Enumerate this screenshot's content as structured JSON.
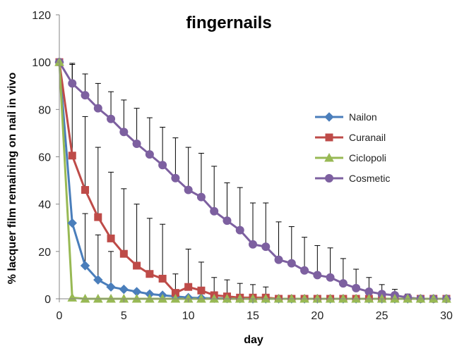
{
  "chart_data": {
    "type": "line",
    "title": "fingernails",
    "xlabel": "day",
    "ylabel": "% lacquer film remaining on nail in vivo",
    "xlim": [
      0,
      30
    ],
    "ylim": [
      0,
      120
    ],
    "xticks": [
      0,
      5,
      10,
      15,
      20,
      25,
      30
    ],
    "yticks": [
      0,
      20,
      40,
      60,
      80,
      100,
      120
    ],
    "grid": false,
    "legend_position": "right",
    "series": [
      {
        "name": "Nailon",
        "color": "#4a7ebb",
        "marker": "diamond",
        "x": [
          0,
          1,
          2,
          3,
          4,
          5,
          6,
          7,
          8,
          9,
          10,
          11,
          12,
          13,
          14,
          15,
          16,
          17,
          18,
          19,
          20,
          21,
          22,
          23,
          24,
          25,
          26,
          27,
          28,
          29,
          30
        ],
        "values": [
          100,
          32,
          14,
          8,
          5,
          4,
          3,
          2,
          1.5,
          1,
          0.5,
          0.3,
          0.2,
          0.1,
          0.1,
          0,
          0,
          0,
          0,
          0,
          0,
          0,
          0,
          0,
          0,
          0,
          0,
          0,
          0,
          0,
          0
        ],
        "error": [
          0,
          0,
          22,
          19,
          15,
          0,
          0,
          0,
          0,
          0,
          0,
          0,
          0,
          0,
          0,
          0,
          0,
          0,
          0,
          0,
          0,
          0,
          0,
          0,
          0,
          0,
          0,
          0,
          0,
          0,
          0
        ]
      },
      {
        "name": "Curanail",
        "color": "#be4b48",
        "marker": "square",
        "x": [
          0,
          1,
          2,
          3,
          4,
          5,
          6,
          7,
          8,
          9,
          10,
          11,
          12,
          13,
          14,
          15,
          16,
          17,
          18,
          19,
          20,
          21,
          22,
          23,
          24,
          25,
          26,
          27,
          28,
          29,
          30
        ],
        "values": [
          100,
          60.5,
          46,
          34.5,
          25.5,
          19,
          14,
          10.5,
          8.5,
          2.5,
          5,
          3.5,
          1.5,
          1,
          0.5,
          0.5,
          0.5,
          0,
          0,
          0,
          0,
          0,
          0,
          0,
          0,
          0,
          0,
          0,
          0,
          0,
          0
        ],
        "error": [
          0,
          38.5,
          31,
          29.5,
          28,
          27.5,
          26,
          23.5,
          23,
          8,
          16,
          12,
          7.5,
          7,
          6,
          5.5,
          4.5,
          0,
          0,
          0,
          0,
          0,
          0,
          0,
          0,
          0,
          0,
          0,
          0,
          0,
          0
        ]
      },
      {
        "name": "Ciclopoli",
        "color": "#98b954",
        "marker": "triangle",
        "x": [
          0,
          1,
          2,
          3,
          4,
          5,
          6,
          7,
          8,
          9,
          10,
          11,
          12,
          13,
          14,
          15,
          16,
          17,
          18,
          19,
          20,
          21,
          22,
          23,
          24,
          25,
          26,
          27,
          28,
          29,
          30
        ],
        "values": [
          100,
          0.5,
          0,
          0,
          0,
          0,
          0,
          0,
          0,
          0,
          0,
          0,
          0,
          0,
          0,
          0,
          0,
          0,
          0,
          0,
          0,
          0,
          0,
          0,
          0,
          0,
          0,
          0,
          0,
          0,
          0
        ],
        "error": [
          0,
          0,
          0,
          0,
          0,
          0,
          0,
          0,
          0,
          0,
          0,
          0,
          0,
          0,
          0,
          0,
          0,
          0,
          0,
          0,
          0,
          0,
          0,
          0,
          0,
          0,
          0,
          0,
          0,
          0,
          0
        ]
      },
      {
        "name": "Cosmetic",
        "color": "#7d60a0",
        "marker": "circle",
        "x": [
          0,
          1,
          2,
          3,
          4,
          5,
          6,
          7,
          8,
          9,
          10,
          11,
          12,
          13,
          14,
          15,
          16,
          17,
          18,
          19,
          20,
          21,
          22,
          23,
          24,
          25,
          26,
          27,
          28,
          29,
          30
        ],
        "values": [
          100,
          91,
          86,
          80.5,
          76,
          70.5,
          65.5,
          61,
          56.5,
          51,
          46,
          43,
          37,
          33,
          29,
          23,
          22,
          16.5,
          15,
          12,
          10,
          9,
          6.5,
          4.5,
          3,
          2,
          1.5,
          0.5,
          0,
          0,
          0
        ],
        "error": [
          0,
          8.5,
          9,
          10.5,
          11.5,
          13.5,
          15,
          15.5,
          16,
          17,
          18,
          18.5,
          19,
          16,
          18,
          17.5,
          18.5,
          16,
          15.5,
          14,
          12.5,
          12.5,
          10.5,
          8,
          6,
          4,
          2.5,
          1.5,
          0,
          0,
          0
        ]
      }
    ]
  }
}
